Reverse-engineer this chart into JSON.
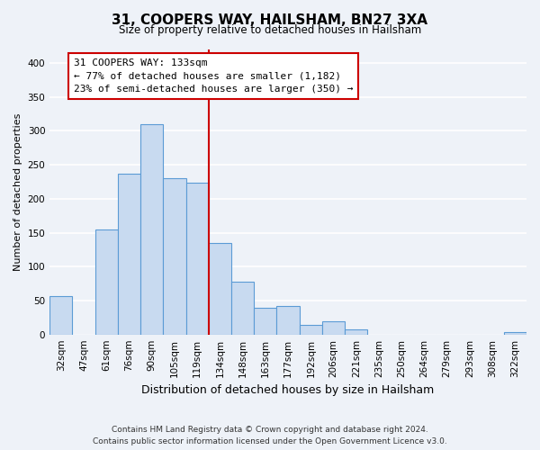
{
  "title": "31, COOPERS WAY, HAILSHAM, BN27 3XA",
  "subtitle": "Size of property relative to detached houses in Hailsham",
  "xlabel": "Distribution of detached houses by size in Hailsham",
  "ylabel": "Number of detached properties",
  "bar_labels": [
    "32sqm",
    "47sqm",
    "61sqm",
    "76sqm",
    "90sqm",
    "105sqm",
    "119sqm",
    "134sqm",
    "148sqm",
    "163sqm",
    "177sqm",
    "192sqm",
    "206sqm",
    "221sqm",
    "235sqm",
    "250sqm",
    "264sqm",
    "279sqm",
    "293sqm",
    "308sqm",
    "322sqm"
  ],
  "bar_values": [
    57,
    0,
    155,
    237,
    310,
    230,
    224,
    135,
    78,
    40,
    42,
    14,
    20,
    7,
    0,
    0,
    0,
    0,
    0,
    0,
    4
  ],
  "bar_color": "#c8daf0",
  "bar_edge_color": "#5b9bd5",
  "reference_line_index": 7,
  "annotation_title": "31 COOPERS WAY: 133sqm",
  "annotation_line1": "← 77% of detached houses are smaller (1,182)",
  "annotation_line2": "23% of semi-detached houses are larger (350) →",
  "annotation_box_color": "#ffffff",
  "annotation_box_edge_color": "#cc0000",
  "reference_line_color": "#cc0000",
  "ylim": [
    0,
    420
  ],
  "yticks": [
    0,
    50,
    100,
    150,
    200,
    250,
    300,
    350,
    400
  ],
  "footer_line1": "Contains HM Land Registry data © Crown copyright and database right 2024.",
  "footer_line2": "Contains public sector information licensed under the Open Government Licence v3.0.",
  "background_color": "#eef2f8",
  "grid_color": "#ffffff",
  "title_fontsize": 11,
  "subtitle_fontsize": 8.5,
  "xlabel_fontsize": 9,
  "ylabel_fontsize": 8,
  "tick_fontsize": 7.5,
  "annotation_fontsize": 8,
  "footer_fontsize": 6.5
}
